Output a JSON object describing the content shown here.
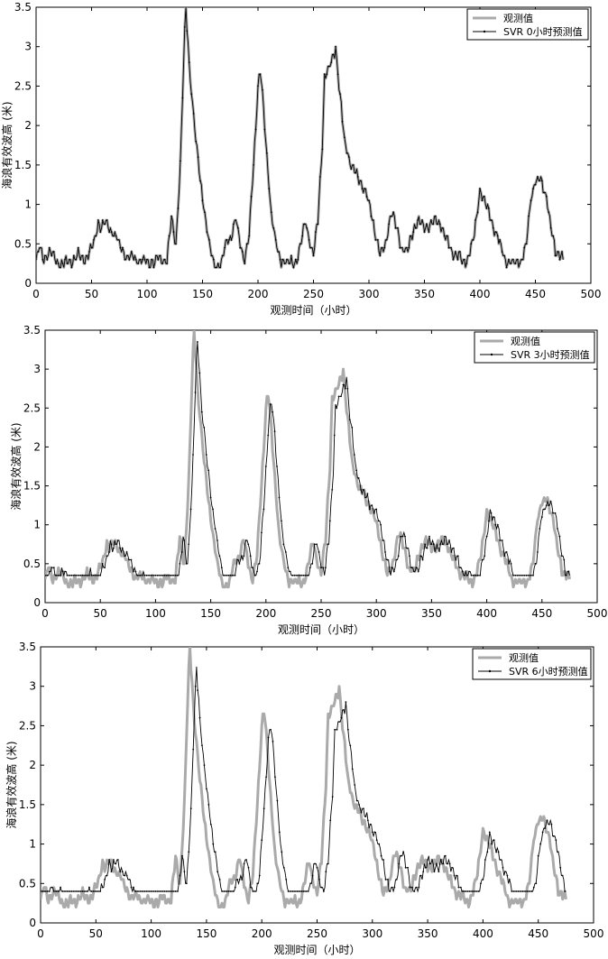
{
  "chart_data": [
    {
      "type": "line",
      "panel": "top",
      "xlabel": "观测时间（小时）",
      "ylabel": "海浪有效波高 (米)",
      "xlim": [
        0,
        500
      ],
      "ylim": [
        0,
        3.5
      ],
      "xticks": [
        "0",
        "50",
        "100",
        "150",
        "200",
        "250",
        "300",
        "350",
        "400",
        "450",
        "500"
      ],
      "yticks": [
        "0",
        "0.5",
        "1",
        "1.5",
        "2",
        "2.5",
        "3",
        "3.5"
      ],
      "legend": [
        "观测值",
        "SVR 0小时预测值"
      ],
      "series": [
        {
          "name": "观测值",
          "lag": 0
        },
        {
          "name": "SVR 0小时预测值",
          "lag": 0
        }
      ]
    },
    {
      "type": "line",
      "panel": "middle",
      "xlabel": "观测时间（小时）",
      "ylabel": "海浪有效波高 (米)",
      "xlim": [
        0,
        500
      ],
      "ylim": [
        0,
        3.5
      ],
      "xticks": [
        "0",
        "50",
        "100",
        "150",
        "200",
        "250",
        "300",
        "350",
        "400",
        "450",
        "500"
      ],
      "yticks": [
        "0",
        "0.5",
        "1",
        "1.5",
        "2",
        "2.5",
        "3",
        "3.5"
      ],
      "legend": [
        "观测值",
        "SVR 3小时预测值"
      ],
      "series": [
        {
          "name": "观测值",
          "lag": 0
        },
        {
          "name": "SVR 3小时预测值",
          "lag": 3
        }
      ]
    },
    {
      "type": "line",
      "panel": "bottom",
      "xlabel": "观测时间（小时）",
      "ylabel": "海浪有效波高 (米)",
      "xlim": [
        0,
        500
      ],
      "ylim": [
        0,
        3.5
      ],
      "xticks": [
        "0",
        "50",
        "100",
        "150",
        "200",
        "250",
        "300",
        "350",
        "400",
        "450",
        "500"
      ],
      "yticks": [
        "0",
        "0.5",
        "1",
        "1.5",
        "2",
        "2.5",
        "3",
        "3.5"
      ],
      "legend": [
        "观测值",
        "SVR 6小时预测值"
      ],
      "series": [
        {
          "name": "观测值",
          "lag": 0
        },
        {
          "name": "SVR 6小时预测值",
          "lag": 6
        }
      ]
    }
  ],
  "observed_keypoints": [
    [
      0,
      0.3
    ],
    [
      3,
      0.45
    ],
    [
      7,
      0.3
    ],
    [
      12,
      0.4
    ],
    [
      18,
      0.3
    ],
    [
      22,
      0.25
    ],
    [
      28,
      0.25
    ],
    [
      33,
      0.3
    ],
    [
      38,
      0.35
    ],
    [
      42,
      0.3
    ],
    [
      47,
      0.35
    ],
    [
      52,
      0.5
    ],
    [
      56,
      0.8
    ],
    [
      58,
      0.7
    ],
    [
      62,
      0.75
    ],
    [
      66,
      0.7
    ],
    [
      70,
      0.65
    ],
    [
      75,
      0.5
    ],
    [
      80,
      0.35
    ],
    [
      90,
      0.3
    ],
    [
      100,
      0.25
    ],
    [
      110,
      0.3
    ],
    [
      118,
      0.3
    ],
    [
      122,
      0.8
    ],
    [
      126,
      0.5
    ],
    [
      130,
      1.5
    ],
    [
      133,
      2.8
    ],
    [
      135,
      3.5
    ],
    [
      138,
      2.8
    ],
    [
      141,
      2.3
    ],
    [
      144,
      1.8
    ],
    [
      148,
      1.3
    ],
    [
      152,
      0.9
    ],
    [
      156,
      0.5
    ],
    [
      160,
      0.25
    ],
    [
      166,
      0.2
    ],
    [
      172,
      0.55
    ],
    [
      176,
      0.6
    ],
    [
      180,
      0.8
    ],
    [
      184,
      0.5
    ],
    [
      188,
      0.3
    ],
    [
      192,
      0.6
    ],
    [
      196,
      1.5
    ],
    [
      200,
      2.5
    ],
    [
      202,
      2.7
    ],
    [
      205,
      2.2
    ],
    [
      208,
      1.6
    ],
    [
      212,
      0.9
    ],
    [
      216,
      0.5
    ],
    [
      220,
      0.3
    ],
    [
      228,
      0.25
    ],
    [
      235,
      0.3
    ],
    [
      240,
      0.6
    ],
    [
      243,
      0.8
    ],
    [
      247,
      0.5
    ],
    [
      250,
      0.35
    ],
    [
      254,
      0.8
    ],
    [
      258,
      1.8
    ],
    [
      260,
      2.6
    ],
    [
      264,
      2.7
    ],
    [
      268,
      2.9
    ],
    [
      270,
      3.0
    ],
    [
      273,
      2.5
    ],
    [
      278,
      1.8
    ],
    [
      282,
      1.6
    ],
    [
      287,
      1.4
    ],
    [
      292,
      1.3
    ],
    [
      296,
      1.2
    ],
    [
      300,
      1.0
    ],
    [
      305,
      0.7
    ],
    [
      310,
      0.35
    ],
    [
      315,
      0.5
    ],
    [
      320,
      0.9
    ],
    [
      325,
      0.7
    ],
    [
      330,
      0.45
    ],
    [
      335,
      0.4
    ],
    [
      340,
      0.7
    ],
    [
      345,
      0.8
    ],
    [
      350,
      0.7
    ],
    [
      355,
      0.75
    ],
    [
      360,
      0.8
    ],
    [
      365,
      0.75
    ],
    [
      370,
      0.55
    ],
    [
      375,
      0.4
    ],
    [
      380,
      0.35
    ],
    [
      385,
      0.25
    ],
    [
      390,
      0.35
    ],
    [
      395,
      0.6
    ],
    [
      400,
      1.2
    ],
    [
      403,
      1.1
    ],
    [
      408,
      0.9
    ],
    [
      413,
      0.7
    ],
    [
      418,
      0.5
    ],
    [
      423,
      0.3
    ],
    [
      430,
      0.25
    ],
    [
      438,
      0.3
    ],
    [
      442,
      0.5
    ],
    [
      446,
      1.1
    ],
    [
      450,
      1.3
    ],
    [
      455,
      1.3
    ],
    [
      460,
      1.1
    ],
    [
      465,
      0.6
    ],
    [
      468,
      0.4
    ],
    [
      473,
      0.4
    ],
    [
      475,
      0.3
    ]
  ]
}
